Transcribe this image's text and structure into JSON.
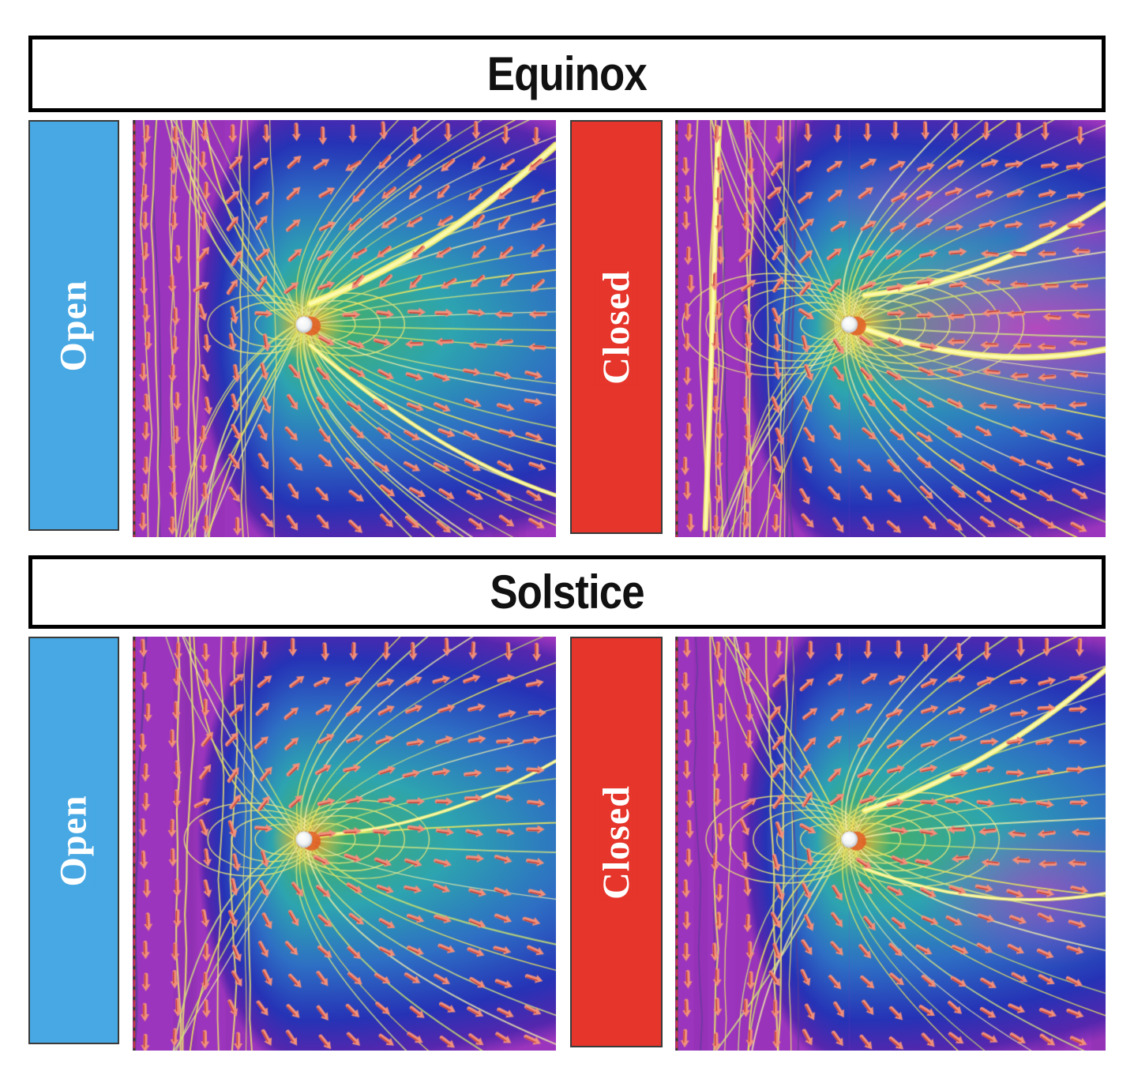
{
  "figure": {
    "sections": [
      {
        "title": "Equinox",
        "panels": [
          {
            "label": "Open"
          },
          {
            "label": "Closed"
          }
        ]
      },
      {
        "title": "Solstice",
        "panels": [
          {
            "label": "Open"
          },
          {
            "label": "Closed"
          }
        ]
      }
    ]
  },
  "colors": {
    "page_bg": "#ffffff",
    "title_text": "#111111",
    "title_border": "#000000",
    "open_label_bg": "#47a8e3",
    "closed_label_bg": "#e6352b",
    "label_text": "#ffffff",
    "sim": {
      "purple": "#9c35bd",
      "purple_dark": "#7c2aa0",
      "blue_deep": "#2633b6",
      "blue": "#2e6ec4",
      "teal": "#2da4b0",
      "green": "#4ab158",
      "yellow": "#efe763",
      "yellow_pale": "#f6f3a8",
      "arrow": "#f0907c",
      "arrow_dark": "#c43d33",
      "pink": "#d636c0",
      "orange": "#e8903a",
      "planet": "#ffffff",
      "planet_shade": "#b7c0ca"
    }
  },
  "panels": [
    {
      "id": "equinox-open",
      "seed": 11,
      "rays": 46,
      "loops": 3,
      "left_lines": 11,
      "pink": [],
      "bands": [
        [
          0.42,
          0.44,
          1.0,
          0.06,
          9
        ],
        [
          0.42,
          0.54,
          1.0,
          0.9,
          5
        ]
      ],
      "upper_right_inflow": true,
      "return_band": true,
      "magenta_right": false
    },
    {
      "id": "equinox-closed",
      "seed": 29,
      "rays": 34,
      "loops": 6,
      "left_lines": 12,
      "pink": [
        [
          0.84,
          0.5,
          0.5,
          0.22,
          0.8
        ],
        [
          0.6,
          0.2,
          0.25,
          0.12,
          0.45
        ],
        [
          0.97,
          0.27,
          0.2,
          0.1,
          0.55
        ]
      ],
      "bands": [
        [
          0.44,
          0.42,
          1.0,
          0.2,
          7
        ],
        [
          0.44,
          0.5,
          1.0,
          0.55,
          8
        ],
        [
          0.1,
          0.02,
          0.07,
          0.98,
          7
        ]
      ],
      "upper_right_inflow": false,
      "return_band": true,
      "magenta_right": true
    },
    {
      "id": "solstice-open",
      "seed": 47,
      "rays": 26,
      "loops": 4,
      "left_lines": 7,
      "pink": [],
      "bands": [
        [
          0.42,
          0.48,
          1.0,
          0.3,
          4
        ]
      ],
      "upper_right_inflow": false,
      "return_band": false,
      "magenta_right": false
    },
    {
      "id": "solstice-closed",
      "seed": 61,
      "rays": 30,
      "loops": 5,
      "left_lines": 8,
      "pink": [
        [
          0.85,
          0.62,
          0.28,
          0.18,
          0.55
        ]
      ],
      "bands": [
        [
          0.44,
          0.42,
          1.0,
          0.08,
          7
        ],
        [
          0.44,
          0.56,
          1.0,
          0.62,
          4
        ]
      ],
      "upper_right_inflow": false,
      "return_band": true,
      "magenta_right": false
    }
  ]
}
